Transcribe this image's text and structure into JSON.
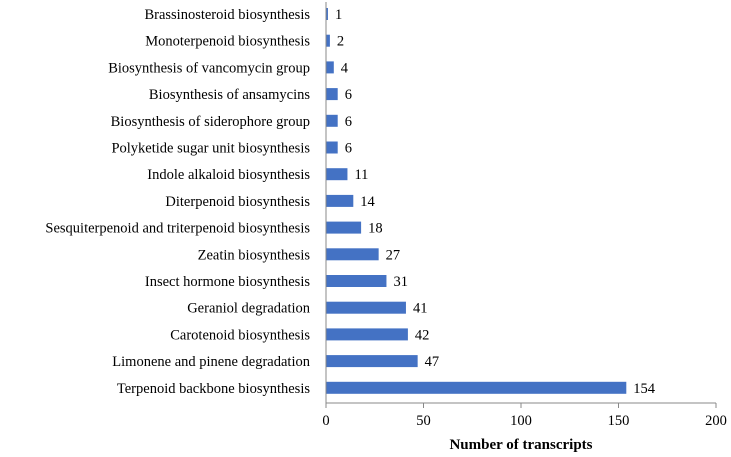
{
  "chart_data": {
    "type": "bar",
    "orientation": "horizontal",
    "categories": [
      "Brassinosteroid biosynthesis",
      "Monoterpenoid biosynthesis",
      "Biosynthesis of vancomycin group",
      "Biosynthesis of ansamycins",
      "Biosynthesis of siderophore group",
      "Polyketide sugar unit biosynthesis",
      "Indole alkaloid biosynthesis",
      "Diterpenoid biosynthesis",
      "Sesquiterpenoid and triterpenoid biosynthesis",
      "Zeatin biosynthesis",
      "Insect hormone biosynthesis",
      "Geraniol degradation",
      "Carotenoid biosynthesis",
      "Limonene and pinene degradation",
      "Terpenoid backbone biosynthesis"
    ],
    "values": [
      1,
      2,
      4,
      6,
      6,
      6,
      11,
      14,
      18,
      27,
      31,
      41,
      42,
      47,
      154
    ],
    "data_labels": [
      "1",
      "2",
      "4",
      "6",
      "6",
      "6",
      "11",
      "14",
      "18",
      "27",
      "31",
      "41",
      "42",
      "47",
      "154"
    ],
    "title": "",
    "xlabel": "Number of transcripts",
    "ylabel": "",
    "xlim": [
      0,
      200
    ],
    "xticks": [
      0,
      50,
      100,
      150,
      200
    ],
    "xtick_labels": [
      "0",
      "50",
      "100",
      "150",
      "200"
    ],
    "grid": false,
    "legend": "none",
    "bar_color": "#4472C4"
  }
}
